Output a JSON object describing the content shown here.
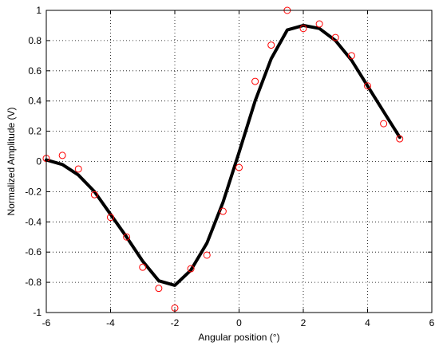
{
  "chart_data": {
    "type": "scatter",
    "title": "",
    "xlabel": "Angular position (°)",
    "ylabel": "Normalized Amplitude (V)",
    "xlim": [
      -6,
      6
    ],
    "ylim": [
      -1,
      1
    ],
    "x_ticks": [
      -6,
      -4,
      -2,
      0,
      2,
      4,
      6
    ],
    "x_tick_labels": [
      "-6",
      "-4",
      "-2",
      "0",
      "2",
      "4",
      "6"
    ],
    "y_ticks": [
      -1,
      -0.8,
      -0.6,
      -0.4,
      -0.2,
      0,
      0.2,
      0.4,
      0.6,
      0.8,
      1
    ],
    "y_tick_labels": [
      "-1",
      "-0.8",
      "-0.6",
      "-0.4",
      "-0.2",
      "0",
      "0.2",
      "0.4",
      "0.6",
      "0.8",
      "1"
    ],
    "grid": "dotted",
    "legend": "none",
    "series": [
      {
        "type": "scatter",
        "marker": "circle",
        "color": "#ff0000",
        "x": [
          -6,
          -5.5,
          -5,
          -4.5,
          -4,
          -3.5,
          -3,
          -2.5,
          -2,
          -1.5,
          -1,
          -0.5,
          0,
          0.5,
          1,
          1.5,
          2,
          2.5,
          3,
          3.5,
          4,
          4.5,
          5
        ],
        "y": [
          0.02,
          0.04,
          -0.05,
          -0.22,
          -0.37,
          -0.5,
          -0.7,
          -0.84,
          -0.97,
          -0.71,
          -0.62,
          -0.33,
          -0.04,
          0.53,
          0.77,
          1.0,
          0.88,
          0.91,
          0.82,
          0.7,
          0.5,
          0.25,
          0.15
        ]
      },
      {
        "type": "line",
        "color": "#000000",
        "x": [
          -6,
          -5.5,
          -5,
          -4.5,
          -4,
          -3.5,
          -3,
          -2.5,
          -2,
          -1.5,
          -1,
          -0.5,
          0,
          0.5,
          1,
          1.5,
          2,
          2.5,
          3,
          3.5,
          4,
          4.5,
          5
        ],
        "y": [
          0.01,
          -0.02,
          -0.09,
          -0.2,
          -0.35,
          -0.5,
          -0.66,
          -0.79,
          -0.82,
          -0.72,
          -0.54,
          -0.27,
          0.06,
          0.4,
          0.68,
          0.87,
          0.9,
          0.88,
          0.8,
          0.67,
          0.5,
          0.33,
          0.16
        ]
      }
    ]
  }
}
